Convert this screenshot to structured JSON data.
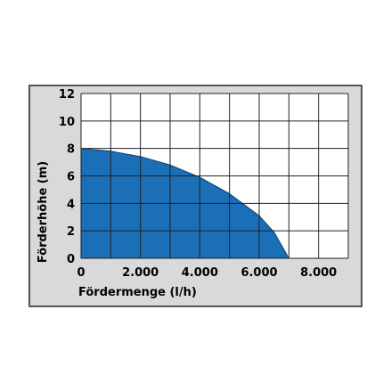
{
  "colors": {
    "panel_background": "#d9d9d9",
    "panel_border": "#555555",
    "plot_background": "#ffffff",
    "grid": "#222222",
    "fill": "#1a6fb7",
    "fill_edge": "#0d3f72"
  },
  "chart_data": {
    "type": "area",
    "xlabel": "Fördermenge (l/h)",
    "ylabel": "Förderhöhe (m)",
    "xlim": [
      0,
      9000
    ],
    "ylim": [
      0,
      12
    ],
    "x_ticks": [
      0,
      2000,
      4000,
      6000,
      8000
    ],
    "x_tick_labels": [
      "0",
      "2.000",
      "4.000",
      "6.000",
      "8.000"
    ],
    "y_ticks": [
      0,
      2,
      4,
      6,
      8,
      10,
      12
    ],
    "y_tick_labels": [
      "0",
      "2",
      "4",
      "6",
      "8",
      "10",
      "12"
    ],
    "grid": true,
    "grid_step_x": 1000,
    "grid_step_y": 2,
    "series": [
      {
        "x": [
          0,
          1000,
          2000,
          3000,
          4000,
          5000,
          6000,
          6500,
          7000
        ],
        "y": [
          8.0,
          7.8,
          7.4,
          6.8,
          5.9,
          4.7,
          3.1,
          1.9,
          0.0
        ]
      }
    ]
  }
}
